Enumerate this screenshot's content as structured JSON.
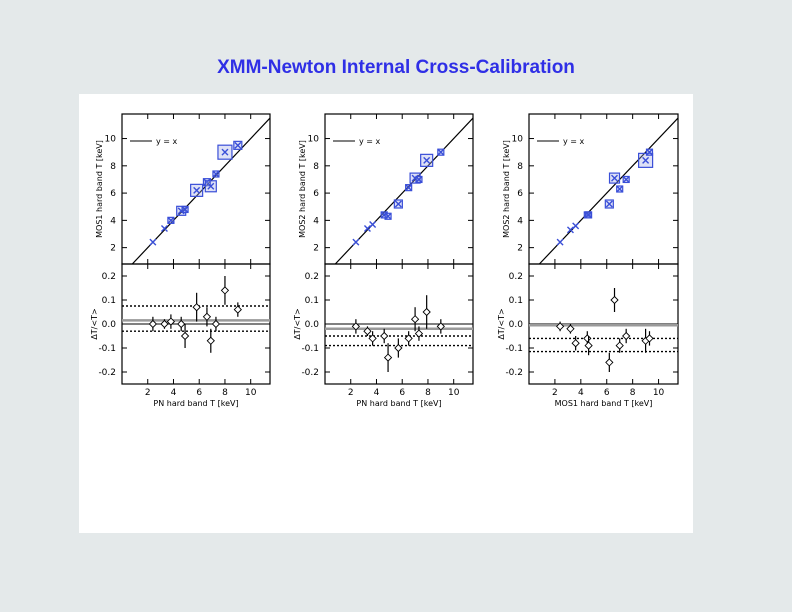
{
  "title": "XMM-Newton Internal Cross-Calibration",
  "colors": {
    "background": "#e4e9ea",
    "title": "#2f2fe6",
    "box": "#3a4fd8",
    "axis": "#000000"
  },
  "chart_data": [
    {
      "type": "scatter",
      "xlabel": "PN hard band T [keV]",
      "ylabel_top": "MOS1 hard band T [keV]",
      "ylabel_bottom": "ΔT/<T>",
      "legend": "y = x",
      "xlim": [
        0,
        11.5
      ],
      "ylim_top": [
        0.8,
        11.8
      ],
      "ylim_bottom": [
        -0.25,
        0.25
      ],
      "xticks": [
        2,
        4,
        6,
        8,
        10
      ],
      "yticks_top": [
        2,
        4,
        6,
        8,
        10
      ],
      "yticks_bottom": [
        -0.2,
        -0.1,
        0.0,
        0.1,
        0.2
      ],
      "top_points": [
        {
          "x": 2.4,
          "y": 2.4,
          "box": 0.0
        },
        {
          "x": 3.3,
          "y": 3.4,
          "box": 0.0
        },
        {
          "x": 3.8,
          "y": 4.0,
          "box": 0.25
        },
        {
          "x": 4.6,
          "y": 4.7,
          "box": 0.45
        },
        {
          "x": 4.9,
          "y": 4.8,
          "box": 0.3
        },
        {
          "x": 5.8,
          "y": 6.2,
          "box": 0.6
        },
        {
          "x": 6.6,
          "y": 6.8,
          "box": 0.35
        },
        {
          "x": 6.9,
          "y": 6.5,
          "box": 0.55
        },
        {
          "x": 7.3,
          "y": 7.4,
          "box": 0.3
        },
        {
          "x": 8.0,
          "y": 9.0,
          "box": 0.7
        },
        {
          "x": 9.0,
          "y": 9.5,
          "box": 0.4
        }
      ],
      "bottom_points": [
        {
          "x": 2.4,
          "y": 0.0,
          "err": 0.03
        },
        {
          "x": 3.3,
          "y": 0.0,
          "err": 0.02
        },
        {
          "x": 3.8,
          "y": 0.01,
          "err": 0.03
        },
        {
          "x": 4.6,
          "y": 0.0,
          "err": 0.03
        },
        {
          "x": 4.9,
          "y": -0.05,
          "err": 0.05
        },
        {
          "x": 5.8,
          "y": 0.07,
          "err": 0.06
        },
        {
          "x": 6.6,
          "y": 0.03,
          "err": 0.04
        },
        {
          "x": 6.9,
          "y": -0.07,
          "err": 0.05
        },
        {
          "x": 7.3,
          "y": 0.0,
          "err": 0.03
        },
        {
          "x": 8.0,
          "y": 0.14,
          "err": 0.06
        },
        {
          "x": 9.0,
          "y": 0.06,
          "err": 0.03
        }
      ],
      "hlines": [
        {
          "y": 0.075,
          "style": "dotted"
        },
        {
          "y": 0.015,
          "style": "solid-grey"
        },
        {
          "y": 0.0,
          "style": "solid"
        },
        {
          "y": -0.03,
          "style": "dotted"
        }
      ]
    },
    {
      "type": "scatter",
      "xlabel": "PN hard band T [keV]",
      "ylabel_top": "MOS2 hard band T [keV]",
      "ylabel_bottom": "ΔT/<T>",
      "legend": "y = x",
      "xlim": [
        0,
        11.5
      ],
      "ylim_top": [
        0.8,
        11.8
      ],
      "ylim_bottom": [
        -0.25,
        0.25
      ],
      "xticks": [
        2,
        4,
        6,
        8,
        10
      ],
      "yticks_top": [
        2,
        4,
        6,
        8,
        10
      ],
      "yticks_bottom": [
        -0.2,
        -0.1,
        0.0,
        0.1,
        0.2
      ],
      "top_points": [
        {
          "x": 2.4,
          "y": 2.4,
          "box": 0.0
        },
        {
          "x": 3.3,
          "y": 3.4,
          "box": 0.0
        },
        {
          "x": 3.7,
          "y": 3.7,
          "box": 0.0
        },
        {
          "x": 4.6,
          "y": 4.4,
          "box": 0.3
        },
        {
          "x": 4.9,
          "y": 4.3,
          "box": 0.3
        },
        {
          "x": 5.7,
          "y": 5.2,
          "box": 0.4
        },
        {
          "x": 6.5,
          "y": 6.4,
          "box": 0.2
        },
        {
          "x": 7.0,
          "y": 7.1,
          "box": 0.5
        },
        {
          "x": 7.3,
          "y": 7.0,
          "box": 0.3
        },
        {
          "x": 7.9,
          "y": 8.4,
          "box": 0.6
        },
        {
          "x": 9.0,
          "y": 9.0,
          "box": 0.3
        }
      ],
      "bottom_points": [
        {
          "x": 2.4,
          "y": -0.01,
          "err": 0.03
        },
        {
          "x": 3.3,
          "y": -0.03,
          "err": 0.02
        },
        {
          "x": 3.7,
          "y": -0.06,
          "err": 0.03
        },
        {
          "x": 4.6,
          "y": -0.05,
          "err": 0.03
        },
        {
          "x": 4.9,
          "y": -0.14,
          "err": 0.06
        },
        {
          "x": 5.7,
          "y": -0.1,
          "err": 0.04
        },
        {
          "x": 6.5,
          "y": -0.06,
          "err": 0.03
        },
        {
          "x": 7.0,
          "y": 0.02,
          "err": 0.05
        },
        {
          "x": 7.3,
          "y": -0.04,
          "err": 0.03
        },
        {
          "x": 7.9,
          "y": 0.05,
          "err": 0.07
        },
        {
          "x": 9.0,
          "y": -0.01,
          "err": 0.03
        }
      ],
      "hlines": [
        {
          "y": 0.0,
          "style": "solid"
        },
        {
          "y": -0.02,
          "style": "solid-grey"
        },
        {
          "y": -0.05,
          "style": "dotted"
        },
        {
          "y": -0.09,
          "style": "dotted"
        }
      ]
    },
    {
      "type": "scatter",
      "xlabel": "MOS1 hard band T [keV]",
      "ylabel_top": "MOS2 hard band T [keV]",
      "ylabel_bottom": "ΔT/<T>",
      "legend": "y = x",
      "xlim": [
        0,
        11.5
      ],
      "ylim_top": [
        0.8,
        11.8
      ],
      "ylim_bottom": [
        -0.25,
        0.25
      ],
      "xticks": [
        2,
        4,
        6,
        8,
        10
      ],
      "yticks_top": [
        2,
        4,
        6,
        8,
        10
      ],
      "yticks_bottom": [
        -0.2,
        -0.1,
        0.0,
        0.1,
        0.2
      ],
      "top_points": [
        {
          "x": 2.4,
          "y": 2.4,
          "box": 0.0
        },
        {
          "x": 3.2,
          "y": 3.3,
          "box": 0.0
        },
        {
          "x": 3.6,
          "y": 3.6,
          "box": 0.0
        },
        {
          "x": 4.5,
          "y": 4.4,
          "box": 0.25
        },
        {
          "x": 4.6,
          "y": 4.4,
          "box": 0.25
        },
        {
          "x": 6.2,
          "y": 5.2,
          "box": 0.4
        },
        {
          "x": 6.6,
          "y": 7.1,
          "box": 0.5
        },
        {
          "x": 7.0,
          "y": 6.3,
          "box": 0.2
        },
        {
          "x": 7.5,
          "y": 7.0,
          "box": 0.3
        },
        {
          "x": 9.0,
          "y": 8.4,
          "box": 0.7
        },
        {
          "x": 9.3,
          "y": 9.0,
          "box": 0.3
        }
      ],
      "bottom_points": [
        {
          "x": 2.4,
          "y": -0.01,
          "err": 0.02
        },
        {
          "x": 3.2,
          "y": -0.02,
          "err": 0.02
        },
        {
          "x": 3.6,
          "y": -0.08,
          "err": 0.03
        },
        {
          "x": 4.5,
          "y": -0.06,
          "err": 0.03
        },
        {
          "x": 4.6,
          "y": -0.09,
          "err": 0.04
        },
        {
          "x": 6.2,
          "y": -0.16,
          "err": 0.04
        },
        {
          "x": 6.6,
          "y": 0.1,
          "err": 0.05
        },
        {
          "x": 7.0,
          "y": -0.09,
          "err": 0.03
        },
        {
          "x": 7.5,
          "y": -0.05,
          "err": 0.03
        },
        {
          "x": 9.0,
          "y": -0.07,
          "err": 0.05
        },
        {
          "x": 9.3,
          "y": -0.06,
          "err": 0.03
        }
      ],
      "hlines": [
        {
          "y": 0.0,
          "style": "solid"
        },
        {
          "y": -0.005,
          "style": "solid-grey"
        },
        {
          "y": -0.06,
          "style": "dotted"
        },
        {
          "y": -0.115,
          "style": "dotted"
        }
      ]
    }
  ]
}
